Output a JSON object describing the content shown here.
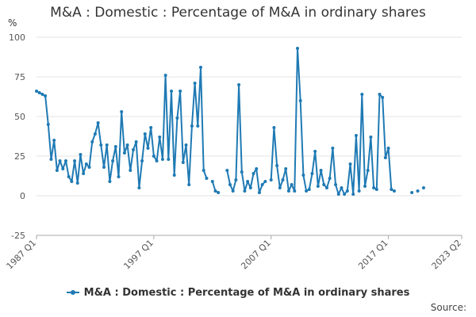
{
  "chart_data": {
    "type": "line",
    "title": "M&A : Domestic : Percentage of M&A in ordinary shares",
    "ylabel": "%",
    "xlabel": "",
    "ylim": [
      -25,
      100
    ],
    "yticks": [
      -25,
      0,
      25,
      50,
      75,
      100
    ],
    "xlim": [
      0,
      145
    ],
    "xticks": [
      {
        "q": 0,
        "label": "1987 Q1"
      },
      {
        "q": 40,
        "label": "1997 Q1"
      },
      {
        "q": 80,
        "label": "2007 Q1"
      },
      {
        "q": 120,
        "label": "2017 Q1"
      },
      {
        "q": 145,
        "label": "2023 Q2"
      }
    ],
    "legend": "bottom-center",
    "source_text": "Source:",
    "series": [
      {
        "name": "M&A : Domestic : Percentage of M&A in ordinary shares",
        "color": "#1f7ab4",
        "start": "1987 Q1",
        "values": [
          66,
          65,
          64,
          63,
          45,
          23,
          35,
          16,
          22,
          17,
          22,
          12,
          9,
          22,
          8,
          26,
          14,
          20,
          18,
          34,
          39,
          46,
          32,
          18,
          32,
          9,
          22,
          31,
          12,
          53,
          27,
          32,
          16,
          29,
          34,
          5,
          22,
          39,
          30,
          43,
          25,
          22,
          37,
          23,
          76,
          23,
          66,
          13,
          49,
          66,
          21,
          32,
          7,
          44,
          71,
          44,
          81,
          16,
          11,
          null,
          9,
          3,
          2,
          null,
          null,
          16,
          7,
          3,
          10,
          70,
          15,
          3,
          9,
          5,
          14,
          17,
          2,
          7,
          9,
          null,
          10,
          43,
          19,
          5,
          10,
          17,
          3,
          7,
          3,
          93,
          60,
          13,
          3,
          4,
          14,
          28,
          6,
          16,
          7,
          5,
          11,
          30,
          7,
          1,
          5,
          1,
          3,
          20,
          1,
          38,
          3,
          64,
          6,
          16,
          37,
          5,
          4,
          64,
          62,
          24,
          30,
          4,
          3,
          null,
          null,
          null,
          null,
          null,
          2,
          null,
          3,
          null,
          5
        ]
      }
    ]
  }
}
